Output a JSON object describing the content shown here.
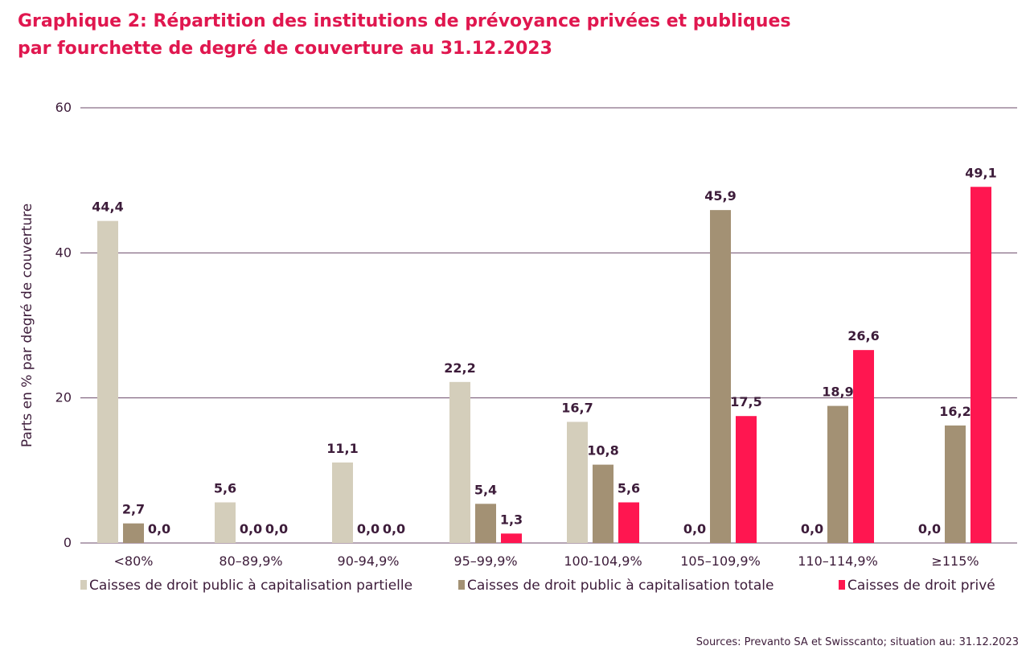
{
  "header": {
    "title_line1": "Graphique 2: Répartition des institutions de prévoyance privées et publiques",
    "title_line2": "par fourchette de degré de couverture au 31.12.2023"
  },
  "footer": {
    "source": "Sources: Prevanto SA et Swisscanto; situation au: 31.12.2023"
  },
  "chart_data": {
    "type": "bar",
    "title": "Graphique 2: Répartition des institutions de prévoyance privées et publiques par fourchette de degré de couverture au 31.12.2023",
    "ylabel": "Parts en % par degré de couverture",
    "xlabel": "",
    "ylim": [
      0,
      60
    ],
    "yticks": [
      "0",
      "20",
      "40",
      "60"
    ],
    "grid": true,
    "legend_position": "bottom",
    "categories": [
      "<80%",
      "80–89,9%",
      "90-94,9%",
      "95–99,9%",
      "100-104,9%",
      "105–109,9%",
      "110–114,9%",
      "≥115%"
    ],
    "series": [
      {
        "name": "Caisses de droit public à capitalisation partielle",
        "color": "#d4cebb",
        "values": [
          44.4,
          5.6,
          11.1,
          22.2,
          16.7,
          0.0,
          0.0,
          0.0
        ],
        "labels": [
          "44,4",
          "5,6",
          "11,1",
          "22,2",
          "16,7",
          "0,0",
          "0,0",
          "0,0"
        ]
      },
      {
        "name": "Caisses de droit public à capitalisation totale",
        "color": "#a39174",
        "values": [
          2.7,
          0.0,
          0.0,
          5.4,
          10.8,
          45.9,
          18.9,
          16.2
        ],
        "labels": [
          "2,7",
          "0,0",
          "0,0",
          "5,4",
          "10,8",
          "45,9",
          "18,9",
          "16,2"
        ]
      },
      {
        "name": "Caisses de droit privé",
        "color": "#ff1650",
        "values": [
          0.0,
          0.0,
          0.0,
          1.3,
          5.6,
          17.5,
          26.6,
          49.1
        ],
        "labels": [
          "0,0",
          "0,0",
          "0,0",
          "1,3",
          "5,6",
          "17,5",
          "26,6",
          "49,1"
        ]
      }
    ]
  },
  "colors": {
    "title": "#e0174f",
    "text": "#3d1c3a",
    "grid": "#6b4a6a"
  }
}
